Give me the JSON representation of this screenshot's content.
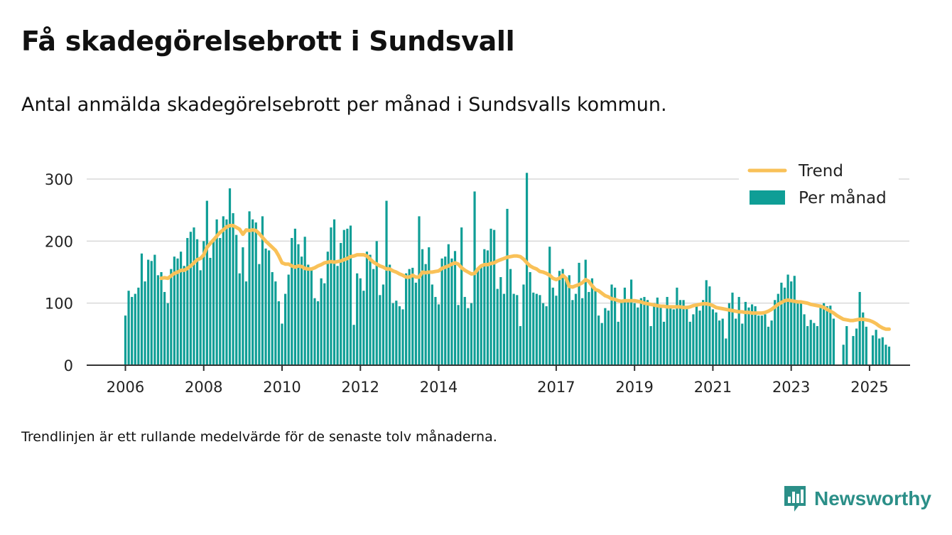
{
  "header": {
    "title": "Få skadegörelsebrott i Sundsvall",
    "subtitle": "Antal anmälda skadegörelsebrott per månad i Sundsvalls kommun."
  },
  "footer": {
    "note": "Trendlinjen är ett rullande medelvärde för de senaste tolv månaderna.",
    "brand": "Newsworthy"
  },
  "colors": {
    "bars": "#0f9e96",
    "trend": "#f9c158",
    "grid": "#d9d9d9",
    "axis": "#333333",
    "brand": "#2b8f88"
  },
  "chart_data": {
    "type": "bar",
    "title": "Få skadegörelsebrott i Sundsvall",
    "ylim": [
      0,
      330
    ],
    "y_ticks": [
      0,
      100,
      200,
      300
    ],
    "x_ticks": [
      "2006",
      "2008",
      "2010",
      "2012",
      "2014",
      "2017",
      "2019",
      "2021",
      "2023",
      "2025"
    ],
    "x_ticks_pos": [
      0,
      24,
      48,
      72,
      96,
      132,
      156,
      180,
      204,
      228
    ],
    "grid": true,
    "legend_position": "top-right",
    "start": "2006-01",
    "series": [
      {
        "name": "Per månad",
        "type": "bar",
        "values": [
          80,
          120,
          110,
          115,
          125,
          180,
          135,
          170,
          168,
          178,
          145,
          150,
          118,
          100,
          155,
          175,
          172,
          183,
          160,
          205,
          215,
          222,
          203,
          153,
          200,
          265,
          173,
          200,
          235,
          205,
          240,
          235,
          285,
          245,
          210,
          148,
          190,
          135,
          248,
          235,
          230,
          163,
          240,
          188,
          185,
          150,
          135,
          103,
          67,
          115,
          146,
          205,
          220,
          195,
          175,
          207,
          162,
          155,
          108,
          103,
          140,
          132,
          183,
          222,
          235,
          160,
          197,
          218,
          220,
          225,
          65,
          148,
          140,
          120,
          183,
          178,
          155,
          200,
          113,
          130,
          265,
          162,
          100,
          104,
          95,
          90,
          148,
          155,
          157,
          133,
          240,
          187,
          163,
          190,
          130,
          110,
          98,
          172,
          175,
          195,
          172,
          184,
          97,
          222,
          110,
          92,
          100,
          280,
          155,
          160,
          187,
          185,
          220,
          218,
          123,
          142,
          115,
          252,
          155,
          115,
          113,
          63,
          130,
          310,
          150,
          117,
          115,
          113,
          100,
          95,
          191,
          125,
          112,
          152,
          155,
          140,
          145,
          105,
          115,
          165,
          108,
          170,
          118,
          140,
          120,
          80,
          68,
          92,
          88,
          130,
          125,
          70,
          105,
          125,
          105,
          138,
          100,
          93,
          108,
          110,
          105,
          63,
          100,
          109,
          93,
          70,
          110,
          95,
          90,
          125,
          105,
          105,
          95,
          70,
          82,
          95,
          88,
          105,
          137,
          127,
          90,
          85,
          72,
          75,
          43,
          100,
          117,
          75,
          110,
          67,
          102,
          93,
          98,
          95,
          80,
          80,
          82,
          62,
          72,
          105,
          115,
          133,
          125,
          146,
          135,
          144,
          100,
          102,
          82,
          63,
          73,
          68,
          63,
          96,
          100,
          95,
          96,
          75,
          0,
          0,
          33,
          63,
          0,
          47,
          59,
          118,
          85,
          62,
          0,
          48,
          57,
          43,
          45,
          33,
          30
        ]
      },
      {
        "name": "Trend",
        "type": "line",
        "values": [
          null,
          null,
          null,
          null,
          null,
          null,
          null,
          null,
          null,
          null,
          null,
          140,
          141,
          140,
          144,
          148,
          150,
          153,
          153,
          156,
          160,
          165,
          170,
          172,
          178,
          190,
          196,
          202,
          208,
          214,
          218,
          223,
          225,
          225,
          222,
          219,
          211,
          218,
          217,
          218,
          217,
          212,
          206,
          200,
          195,
          190,
          185,
          176,
          165,
          163,
          163,
          160,
          158,
          160,
          159,
          156,
          155,
          155,
          157,
          160,
          162,
          165,
          166,
          167,
          166,
          167,
          168,
          170,
          172,
          175,
          176,
          178,
          178,
          178,
          176,
          171,
          166,
          163,
          160,
          158,
          155,
          155,
          152,
          150,
          147,
          145,
          142,
          142,
          145,
          142,
          142,
          150,
          149,
          150,
          150,
          151,
          152,
          156,
          158,
          160,
          163,
          165,
          163,
          157,
          153,
          150,
          147,
          148,
          155,
          160,
          162,
          162,
          164,
          165,
          168,
          170,
          172,
          174,
          175,
          176,
          176,
          175,
          171,
          165,
          160,
          157,
          155,
          151,
          150,
          148,
          145,
          140,
          138,
          140,
          145,
          140,
          127,
          126,
          128,
          130,
          133,
          138,
          135,
          128,
          122,
          120,
          116,
          112,
          110,
          107,
          106,
          104,
          103,
          104,
          104,
          104,
          104,
          103,
          102,
          100,
          99,
          98,
          97,
          96,
          95,
          95,
          94,
          94,
          94,
          94,
          94,
          93,
          93,
          94,
          96,
          97,
          98,
          99,
          99,
          98,
          96,
          93,
          92,
          91,
          90,
          89,
          88,
          87,
          86,
          86,
          85,
          85,
          84,
          84,
          84,
          84,
          85,
          87,
          90,
          94,
          98,
          101,
          104,
          105,
          104,
          103,
          102,
          102,
          101,
          100,
          98,
          97,
          96,
          95,
          93,
          90,
          87,
          84,
          80,
          77,
          74,
          73,
          72,
          72,
          73,
          74,
          74,
          73,
          72,
          70,
          67,
          63,
          60,
          58,
          58
        ]
      }
    ]
  }
}
